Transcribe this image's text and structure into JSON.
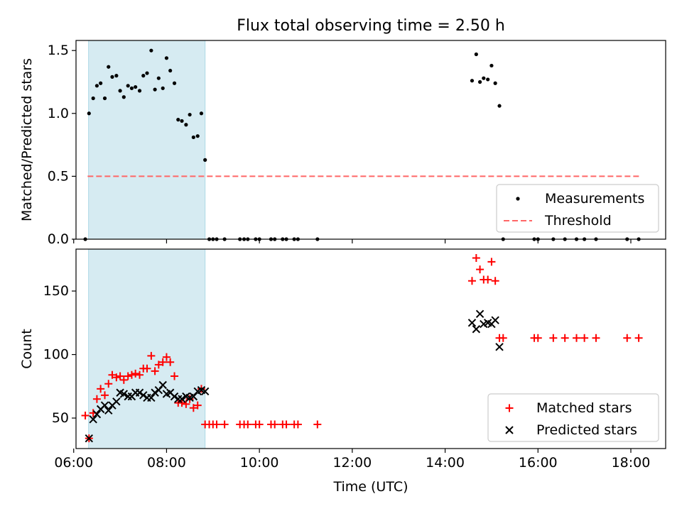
{
  "title": "Flux total observing time = 2.50 h",
  "chart_data": [
    {
      "type": "scatter",
      "panel": "top",
      "ylabel": "Matched/Predicted stars",
      "xlim": [
        6.05,
        18.75
      ],
      "ylim": [
        0,
        1.58
      ],
      "yticks": [
        0.0,
        0.5,
        1.0,
        1.5
      ],
      "ytick_labels": [
        "0.0",
        "0.5",
        "1.0",
        "1.5"
      ],
      "shaded_span": [
        6.32,
        8.83
      ],
      "shaded_color": "#add8e6",
      "legend_position": "lower-right",
      "legend": [
        {
          "label": "Measurements",
          "marker": "dot",
          "color": "#000000"
        },
        {
          "label": "Threshold",
          "marker": "dashed-line",
          "color": "#ff6666"
        }
      ],
      "threshold": {
        "y": 0.5,
        "x": [
          6.3,
          18.2
        ]
      },
      "series": [
        {
          "name": "Measurements",
          "color": "#000000",
          "points": [
            [
              6.25,
              0
            ],
            [
              6.33,
              1.0
            ],
            [
              6.42,
              1.12
            ],
            [
              6.5,
              1.22
            ],
            [
              6.58,
              1.24
            ],
            [
              6.67,
              1.12
            ],
            [
              6.75,
              1.37
            ],
            [
              6.83,
              1.29
            ],
            [
              6.92,
              1.3
            ],
            [
              7.0,
              1.18
            ],
            [
              7.08,
              1.13
            ],
            [
              7.17,
              1.22
            ],
            [
              7.25,
              1.2
            ],
            [
              7.33,
              1.21
            ],
            [
              7.42,
              1.18
            ],
            [
              7.5,
              1.3
            ],
            [
              7.58,
              1.32
            ],
            [
              7.67,
              1.5
            ],
            [
              7.75,
              1.19
            ],
            [
              7.83,
              1.28
            ],
            [
              7.92,
              1.2
            ],
            [
              8.0,
              1.44
            ],
            [
              8.08,
              1.34
            ],
            [
              8.17,
              1.24
            ],
            [
              8.25,
              0.95
            ],
            [
              8.33,
              0.94
            ],
            [
              8.42,
              0.91
            ],
            [
              8.5,
              0.99
            ],
            [
              8.58,
              0.81
            ],
            [
              8.67,
              0.82
            ],
            [
              8.75,
              1.0
            ],
            [
              8.83,
              0.63
            ],
            [
              8.92,
              0
            ],
            [
              9.0,
              0
            ],
            [
              9.08,
              0
            ],
            [
              9.25,
              0
            ],
            [
              9.58,
              0
            ],
            [
              9.67,
              0
            ],
            [
              9.75,
              0
            ],
            [
              9.92,
              0
            ],
            [
              10.0,
              0
            ],
            [
              10.25,
              0
            ],
            [
              10.33,
              0
            ],
            [
              10.5,
              0
            ],
            [
              10.58,
              0
            ],
            [
              10.75,
              0
            ],
            [
              10.83,
              0
            ],
            [
              11.25,
              0
            ],
            [
              14.58,
              1.26
            ],
            [
              14.67,
              1.47
            ],
            [
              14.75,
              1.25
            ],
            [
              14.83,
              1.28
            ],
            [
              14.92,
              1.27
            ],
            [
              15.0,
              1.38
            ],
            [
              15.08,
              1.24
            ],
            [
              15.17,
              1.06
            ],
            [
              15.25,
              0
            ],
            [
              15.92,
              0
            ],
            [
              16.0,
              0
            ],
            [
              16.33,
              0
            ],
            [
              16.58,
              0
            ],
            [
              16.83,
              0
            ],
            [
              17.0,
              0
            ],
            [
              17.25,
              0
            ],
            [
              17.92,
              0
            ],
            [
              18.17,
              0
            ]
          ]
        }
      ]
    },
    {
      "type": "scatter",
      "panel": "bottom",
      "xlabel": "Time (UTC)",
      "ylabel": "Count",
      "xlim": [
        6.05,
        18.75
      ],
      "ylim": [
        26,
        183
      ],
      "xticks": [
        6,
        8,
        10,
        12,
        14,
        16,
        18
      ],
      "xtick_labels": [
        "06:00",
        "08:00",
        "10:00",
        "12:00",
        "14:00",
        "16:00",
        "18:00"
      ],
      "yticks": [
        50,
        100,
        150
      ],
      "ytick_labels": [
        "50",
        "100",
        "150"
      ],
      "shaded_span": [
        6.32,
        8.83
      ],
      "shaded_color": "#add8e6",
      "legend_position": "lower-right",
      "legend": [
        {
          "label": "Matched stars",
          "marker": "plus",
          "color": "#ff0000"
        },
        {
          "label": "Predicted stars",
          "marker": "x",
          "color": "#000000"
        }
      ],
      "series": [
        {
          "name": "Matched stars",
          "marker": "plus",
          "color": "#ff0000",
          "points": [
            [
              6.25,
              52
            ],
            [
              6.33,
              34
            ],
            [
              6.42,
              54
            ],
            [
              6.5,
              65
            ],
            [
              6.58,
              73
            ],
            [
              6.67,
              68
            ],
            [
              6.75,
              77
            ],
            [
              6.83,
              84
            ],
            [
              6.92,
              82
            ],
            [
              7.0,
              83
            ],
            [
              7.08,
              80
            ],
            [
              7.17,
              83
            ],
            [
              7.25,
              84
            ],
            [
              7.33,
              85
            ],
            [
              7.42,
              84
            ],
            [
              7.5,
              89
            ],
            [
              7.58,
              89
            ],
            [
              7.67,
              99
            ],
            [
              7.75,
              87
            ],
            [
              7.83,
              92
            ],
            [
              7.92,
              94
            ],
            [
              8.0,
              98
            ],
            [
              8.08,
              94
            ],
            [
              8.17,
              83
            ],
            [
              8.25,
              62
            ],
            [
              8.33,
              62
            ],
            [
              8.42,
              61
            ],
            [
              8.5,
              65
            ],
            [
              8.58,
              58
            ],
            [
              8.67,
              60
            ],
            [
              8.75,
              73
            ],
            [
              8.83,
              45
            ],
            [
              8.92,
              45
            ],
            [
              9.0,
              45
            ],
            [
              9.08,
              45
            ],
            [
              9.25,
              45
            ],
            [
              9.58,
              45
            ],
            [
              9.67,
              45
            ],
            [
              9.75,
              45
            ],
            [
              9.92,
              45
            ],
            [
              10.0,
              45
            ],
            [
              10.25,
              45
            ],
            [
              10.33,
              45
            ],
            [
              10.5,
              45
            ],
            [
              10.58,
              45
            ],
            [
              10.75,
              45
            ],
            [
              10.83,
              45
            ],
            [
              11.25,
              45
            ],
            [
              14.58,
              158
            ],
            [
              14.67,
              176
            ],
            [
              14.75,
              167
            ],
            [
              14.83,
              159
            ],
            [
              14.92,
              159
            ],
            [
              15.0,
              173
            ],
            [
              15.08,
              158
            ],
            [
              15.17,
              113
            ],
            [
              15.25,
              113
            ],
            [
              15.92,
              113
            ],
            [
              16.0,
              113
            ],
            [
              16.33,
              113
            ],
            [
              16.58,
              113
            ],
            [
              16.83,
              113
            ],
            [
              17.0,
              113
            ],
            [
              17.25,
              113
            ],
            [
              17.92,
              113
            ],
            [
              18.17,
              113
            ]
          ]
        },
        {
          "name": "Predicted stars",
          "marker": "x",
          "color": "#000000",
          "points": [
            [
              6.33,
              34
            ],
            [
              6.42,
              49
            ],
            [
              6.5,
              53
            ],
            [
              6.58,
              57
            ],
            [
              6.67,
              60
            ],
            [
              6.75,
              56
            ],
            [
              6.83,
              60
            ],
            [
              6.92,
              63
            ],
            [
              7.0,
              70
            ],
            [
              7.08,
              69
            ],
            [
              7.17,
              67
            ],
            [
              7.25,
              67
            ],
            [
              7.33,
              70
            ],
            [
              7.42,
              70
            ],
            [
              7.5,
              68
            ],
            [
              7.58,
              66
            ],
            [
              7.67,
              66
            ],
            [
              7.75,
              70
            ],
            [
              7.83,
              72
            ],
            [
              7.92,
              76
            ],
            [
              8.0,
              69
            ],
            [
              8.08,
              70
            ],
            [
              8.17,
              67
            ],
            [
              8.25,
              65
            ],
            [
              8.33,
              65
            ],
            [
              8.42,
              67
            ],
            [
              8.5,
              66
            ],
            [
              8.58,
              67
            ],
            [
              8.67,
              71
            ],
            [
              8.75,
              72
            ],
            [
              8.83,
              71
            ],
            [
              14.58,
              125
            ],
            [
              14.67,
              120
            ],
            [
              14.75,
              132
            ],
            [
              14.83,
              124
            ],
            [
              14.92,
              125
            ],
            [
              15.0,
              124
            ],
            [
              15.08,
              127
            ],
            [
              15.17,
              106
            ]
          ]
        }
      ]
    }
  ]
}
